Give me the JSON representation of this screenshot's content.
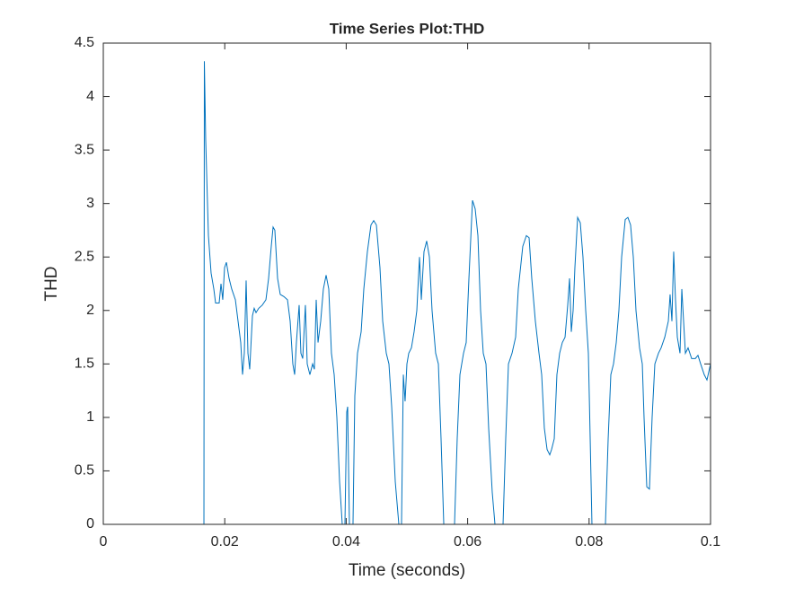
{
  "chart_data": {
    "type": "line",
    "title": "Time Series Plot:THD",
    "xlabel": "Time (seconds)",
    "ylabel": "THD",
    "color": "#0072bd",
    "xlim": [
      0,
      0.1
    ],
    "xticks": [
      0,
      0.02,
      0.04,
      0.06,
      0.08,
      0.1
    ],
    "ylim": [
      0,
      4.5
    ],
    "yticks": [
      0,
      0.5,
      1,
      1.5,
      2,
      2.5,
      3,
      3.5,
      4,
      4.5
    ],
    "x": [
      0,
      0.01657,
      0.01664,
      0.01686,
      0.01731,
      0.01775,
      0.0182,
      0.01849,
      0.01908,
      0.01938,
      0.01967,
      0.01997,
      0.02027,
      0.02071,
      0.02115,
      0.02175,
      0.02219,
      0.02263,
      0.02293,
      0.02322,
      0.02352,
      0.02382,
      0.02411,
      0.02456,
      0.02485,
      0.02515,
      0.02559,
      0.02618,
      0.02678,
      0.02722,
      0.02766,
      0.02796,
      0.02825,
      0.0287,
      0.02914,
      0.02973,
      0.03033,
      0.03077,
      0.03121,
      0.03151,
      0.0318,
      0.03225,
      0.03254,
      0.03284,
      0.03328,
      0.03358,
      0.03402,
      0.03447,
      0.03476,
      0.03506,
      0.03536,
      0.0358,
      0.03624,
      0.03669,
      0.03713,
      0.03757,
      0.03802,
      0.03846,
      0.03891,
      0.03935,
      0.03979,
      0.04009,
      0.04024,
      0.04053,
      0.04112,
      0.04142,
      0.04186,
      0.04246,
      0.0429,
      0.04349,
      0.04408,
      0.04453,
      0.04497,
      0.04556,
      0.04601,
      0.0466,
      0.04704,
      0.04749,
      0.04808,
      0.04867,
      0.04911,
      0.04941,
      0.0497,
      0.05,
      0.0503,
      0.05074,
      0.05118,
      0.05163,
      0.05207,
      0.05237,
      0.05281,
      0.05325,
      0.0537,
      0.05414,
      0.05473,
      0.05518,
      0.05562,
      0.05607,
      0.05784,
      0.05828,
      0.05873,
      0.05932,
      0.05976,
      0.06021,
      0.0608,
      0.06124,
      0.06169,
      0.06213,
      0.06257,
      0.06302,
      0.06346,
      0.06405,
      0.0645,
      0.06583,
      0.06627,
      0.06672,
      0.06731,
      0.0679,
      0.06834,
      0.06908,
      0.06967,
      0.07012,
      0.07056,
      0.07115,
      0.07175,
      0.07219,
      0.07263,
      0.07308,
      0.07352,
      0.07382,
      0.07426,
      0.0747,
      0.07515,
      0.07559,
      0.07604,
      0.07648,
      0.07678,
      0.07707,
      0.07737,
      0.07766,
      0.07811,
      0.07855,
      0.07899,
      0.07944,
      0.07988,
      0.08018,
      0.08047,
      0.08269,
      0.08314,
      0.08358,
      0.08402,
      0.08447,
      0.08491,
      0.08536,
      0.08595,
      0.08639,
      0.08683,
      0.08728,
      0.08772,
      0.08831,
      0.08876,
      0.08905,
      0.0895,
      0.08994,
      0.09038,
      0.09083,
      0.09142,
      0.09186,
      0.09246,
      0.09305,
      0.09334,
      0.09364,
      0.09393,
      0.09423,
      0.09453,
      0.09497,
      0.09527,
      0.09556,
      0.09586,
      0.0963,
      0.09689,
      0.09749,
      0.09793,
      0.09837,
      0.09896,
      0.09941,
      0.1
    ],
    "values": [
      0,
      0,
      4.33,
      3.6,
      2.7,
      2.35,
      2.2,
      2.07,
      2.07,
      2.25,
      2.1,
      2.4,
      2.45,
      2.3,
      2.2,
      2.1,
      1.9,
      1.7,
      1.4,
      1.6,
      2.28,
      1.6,
      1.45,
      1.95,
      2.02,
      1.98,
      2.02,
      2.05,
      2.1,
      2.3,
      2.6,
      2.78,
      2.75,
      2.3,
      2.15,
      2.13,
      2.1,
      1.9,
      1.5,
      1.4,
      1.7,
      2.05,
      1.6,
      1.55,
      2.05,
      1.5,
      1.4,
      1.5,
      1.45,
      2.1,
      1.7,
      1.9,
      2.2,
      2.33,
      2.2,
      1.6,
      1.4,
      1.0,
      0.4,
      0,
      0,
      1.05,
      1.1,
      0,
      0,
      1.2,
      1.6,
      1.8,
      2.2,
      2.55,
      2.8,
      2.84,
      2.8,
      2.4,
      1.9,
      1.6,
      1.5,
      1.1,
      0.4,
      0,
      0,
      1.4,
      1.15,
      1.5,
      1.6,
      1.65,
      1.8,
      2.0,
      2.5,
      2.1,
      2.55,
      2.65,
      2.5,
      2.0,
      1.6,
      1.5,
      0.8,
      0,
      0,
      0.8,
      1.4,
      1.6,
      1.7,
      2.3,
      3.03,
      2.95,
      2.7,
      2.0,
      1.6,
      1.5,
      0.9,
      0.3,
      0,
      0,
      0.8,
      1.5,
      1.6,
      1.75,
      2.2,
      2.6,
      2.7,
      2.68,
      2.3,
      1.9,
      1.6,
      1.4,
      0.9,
      0.7,
      0.65,
      0.7,
      0.8,
      1.4,
      1.6,
      1.7,
      1.75,
      2.05,
      2.3,
      1.8,
      2.0,
      2.4,
      2.87,
      2.82,
      2.5,
      2.0,
      1.6,
      0.8,
      0,
      0,
      0.8,
      1.4,
      1.5,
      1.7,
      2.0,
      2.5,
      2.85,
      2.87,
      2.8,
      2.5,
      2.0,
      1.65,
      1.5,
      1.0,
      0.35,
      0.33,
      1.0,
      1.5,
      1.6,
      1.65,
      1.75,
      1.9,
      2.15,
      1.9,
      2.55,
      2.1,
      1.75,
      1.6,
      2.2,
      1.9,
      1.6,
      1.65,
      1.55,
      1.55,
      1.58,
      1.5,
      1.4,
      1.35,
      1.5
    ]
  }
}
